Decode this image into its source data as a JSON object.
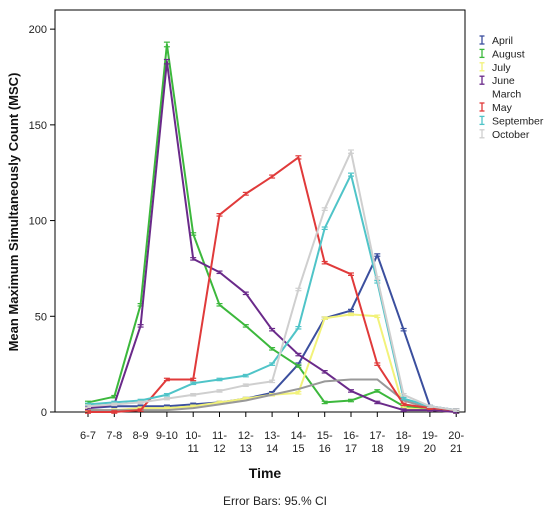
{
  "chart_data": {
    "type": "line",
    "xlabel": "Time",
    "ylabel": "Mean Maximum Simultaneously Count (MSC)",
    "ylim": [
      0,
      210
    ],
    "yticks": [
      0,
      50,
      100,
      150,
      200
    ],
    "grid": false,
    "legend_position": "right",
    "categories": [
      [
        "6-7"
      ],
      [
        "7-8"
      ],
      [
        "8-9"
      ],
      [
        "9-10"
      ],
      [
        "10-",
        "11"
      ],
      [
        "11-",
        "12"
      ],
      [
        "12-",
        "13"
      ],
      [
        "13-",
        "14"
      ],
      [
        "14-",
        "15"
      ],
      [
        "15-",
        "16"
      ],
      [
        "16-",
        "17"
      ],
      [
        "17-",
        "18"
      ],
      [
        "18-",
        "19"
      ],
      [
        "19-",
        "20"
      ],
      [
        "20-",
        "21"
      ]
    ],
    "series": [
      {
        "name": "April",
        "color": "#3b4f9e",
        "error_bars": true,
        "values": [
          2,
          3,
          3,
          3,
          4,
          5,
          7,
          10,
          25,
          49,
          53,
          82,
          43,
          3,
          1
        ]
      },
      {
        "name": "August",
        "color": "#3cb83c",
        "error_bars": true,
        "values": [
          5,
          8,
          56,
          192,
          93,
          56,
          45,
          33,
          24,
          5,
          6,
          11,
          3,
          2,
          0
        ]
      },
      {
        "name": "July",
        "color": "#f2f27a",
        "error_bars": true,
        "values": [
          1,
          1,
          2,
          2,
          3,
          5,
          7,
          9,
          10,
          49,
          51,
          50,
          2,
          1,
          0
        ]
      },
      {
        "name": "June",
        "color": "#6a2a8a",
        "error_bars": true,
        "values": [
          2,
          4,
          45,
          183,
          80,
          73,
          62,
          43,
          30,
          21,
          11,
          5,
          1,
          1,
          0
        ]
      },
      {
        "name": "March",
        "color": "#999999",
        "error_bars": false,
        "values": [
          1,
          1,
          1,
          1,
          2,
          4,
          6,
          9,
          12,
          16,
          17,
          17,
          6,
          2,
          1
        ]
      },
      {
        "name": "May",
        "color": "#e03a3a",
        "error_bars": true,
        "values": [
          0,
          0,
          1,
          17,
          17,
          103,
          114,
          123,
          133,
          78,
          72,
          25,
          4,
          2,
          1
        ]
      },
      {
        "name": "September",
        "color": "#4fc4c8",
        "error_bars": true,
        "values": [
          4,
          5,
          6,
          9,
          15,
          17,
          19,
          25,
          44,
          96,
          124,
          68,
          7,
          3,
          1
        ]
      },
      {
        "name": "October",
        "color": "#cfcfcf",
        "error_bars": true,
        "values": [
          3,
          4,
          5,
          7,
          9,
          11,
          14,
          16,
          64,
          106,
          136,
          70,
          9,
          3,
          1
        ]
      }
    ]
  },
  "footer": {
    "note": "Error Bars: 95.% CI"
  }
}
